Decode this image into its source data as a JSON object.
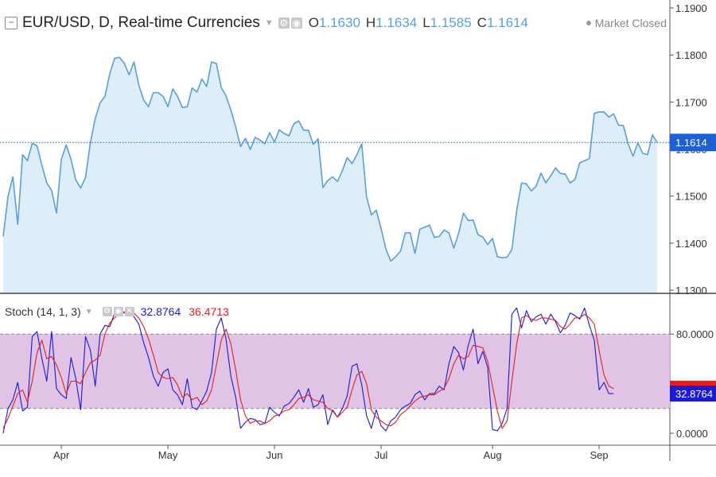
{
  "header": {
    "symbol": "EUR/USD, D, Real-time Currencies",
    "caret_icon": "chevron-down-icon",
    "ohlc": [
      {
        "key": "O",
        "value": "1.1630"
      },
      {
        "key": "H",
        "value": "1.1634"
      },
      {
        "key": "L",
        "value": "1.1585"
      },
      {
        "key": "C",
        "value": "1.1614"
      }
    ],
    "status": "Market Closed"
  },
  "stoch_legend": {
    "name": "Stoch (14, 1, 3)",
    "k_value": "32.8764",
    "d_value": "36.4713"
  },
  "colors": {
    "price_line": "#5a9fd8",
    "price_fill": "#ddeef9",
    "stoch_k": "#1a1ad6",
    "stoch_d": "#e02020",
    "stoch_band": "#e1c4e5",
    "last_price_badge": "#1f5fd4"
  },
  "chart_data": [
    {
      "type": "area",
      "ylim": [
        1.13,
        1.19
      ],
      "y_ticks": [
        "1.1300",
        "1.1400",
        "1.1500",
        "1.1600",
        "1.1700",
        "1.1800",
        "1.1900"
      ],
      "last_price": 1.1614,
      "last_price_label": "1.1614",
      "series": [
        {
          "values": [
            1.1414,
            1.15,
            1.1541,
            1.144,
            1.1588,
            1.1575,
            1.1612,
            1.1607,
            1.1565,
            1.1528,
            1.1512,
            1.1464,
            1.1578,
            1.1609,
            1.1578,
            1.1534,
            1.1517,
            1.154,
            1.1614,
            1.1665,
            1.1698,
            1.1712,
            1.176,
            1.1793,
            1.1795,
            1.1782,
            1.1758,
            1.1785,
            1.1736,
            1.1704,
            1.169,
            1.172,
            1.172,
            1.1712,
            1.169,
            1.1728,
            1.1712,
            1.1688,
            1.169,
            1.173,
            1.1721,
            1.1749,
            1.1733,
            1.1785,
            1.1782,
            1.1731,
            1.1713,
            1.1683,
            1.1647,
            1.1605,
            1.1623,
            1.1599,
            1.1625,
            1.1619,
            1.1611,
            1.1635,
            1.1615,
            1.1641,
            1.1633,
            1.1628,
            1.1654,
            1.166,
            1.164,
            1.164,
            1.161,
            1.1622,
            1.1518,
            1.1533,
            1.1541,
            1.1531,
            1.1554,
            1.1582,
            1.1569,
            1.1588,
            1.1611,
            1.1498,
            1.146,
            1.147,
            1.1431,
            1.1387,
            1.1362,
            1.1371,
            1.1383,
            1.1422,
            1.1422,
            1.1378,
            1.143,
            1.1434,
            1.1438,
            1.1412,
            1.1414,
            1.1428,
            1.1422,
            1.1389,
            1.1421,
            1.1464,
            1.1448,
            1.1449,
            1.1418,
            1.1413,
            1.1397,
            1.141,
            1.1371,
            1.1369,
            1.137,
            1.1386,
            1.147,
            1.1528,
            1.1526,
            1.1511,
            1.1521,
            1.1549,
            1.1528,
            1.1543,
            1.156,
            1.1548,
            1.1547,
            1.1528,
            1.1535,
            1.1571,
            1.1575,
            1.158,
            1.1676,
            1.1679,
            1.1679,
            1.1668,
            1.1675,
            1.1651,
            1.165,
            1.1611,
            1.1585,
            1.1613,
            1.1591,
            1.1588,
            1.163,
            1.1614
          ]
        }
      ]
    },
    {
      "type": "line",
      "x_ticks": [
        {
          "label": "Apr",
          "index": 12
        },
        {
          "label": "May",
          "index": 34
        },
        {
          "label": "Jun",
          "index": 56
        },
        {
          "label": "Jul",
          "index": 78
        },
        {
          "label": "Aug",
          "index": 101
        },
        {
          "label": "Sep",
          "index": 123
        }
      ],
      "ylim": [
        -2,
        104
      ],
      "band": [
        20,
        80
      ],
      "y_ticks": [
        {
          "label": "0.0000",
          "value": 0
        },
        {
          "label": "80.0000",
          "value": 80
        }
      ],
      "series": [
        {
          "name": "%K",
          "values": [
            0,
            20,
            27,
            41,
            18,
            21,
            78,
            82,
            60,
            42,
            82,
            36,
            31,
            28,
            61,
            44,
            19,
            78,
            67,
            38,
            80,
            87,
            86,
            97,
            100,
            97,
            97,
            94,
            88,
            73,
            61,
            46,
            38,
            49,
            52,
            35,
            31,
            23,
            44,
            21,
            19,
            26,
            34,
            49,
            84,
            93,
            76,
            46,
            29,
            4,
            9,
            12,
            11,
            7,
            8,
            21,
            17,
            14,
            22,
            24,
            29,
            35,
            25,
            36,
            21,
            23,
            31,
            7,
            19,
            13,
            20,
            30,
            54,
            56,
            39,
            14,
            4,
            19,
            6,
            2,
            10,
            13,
            19,
            22,
            24,
            31,
            34,
            27,
            32,
            32,
            38,
            35,
            56,
            70,
            65,
            51,
            71,
            84,
            56,
            66,
            53,
            3,
            2,
            8,
            20,
            96,
            101,
            85,
            99,
            90,
            94,
            96,
            88,
            96,
            90,
            81,
            87,
            97,
            95,
            92,
            101,
            87,
            75,
            35,
            41,
            32,
            32
          ]
        },
        {
          "name": "%D",
          "values": [
            4,
            12,
            22,
            32,
            35,
            25,
            42,
            65,
            75,
            60,
            62,
            55,
            45,
            32,
            42,
            42,
            40,
            49,
            57,
            59,
            63,
            80,
            89,
            93,
            97,
            98,
            99,
            97,
            93,
            86,
            76,
            63,
            49,
            45,
            44,
            45,
            39,
            29,
            32,
            27,
            29,
            23,
            26,
            35,
            55,
            75,
            84,
            72,
            51,
            27,
            14,
            8,
            10,
            10,
            8,
            10,
            14,
            15,
            18,
            19,
            23,
            28,
            29,
            31,
            27,
            26,
            25,
            20,
            18,
            13,
            17,
            21,
            35,
            47,
            50,
            40,
            19,
            13,
            10,
            7,
            6,
            9,
            15,
            18,
            22,
            26,
            29,
            30,
            31,
            31,
            34,
            36,
            44,
            56,
            63,
            60,
            62,
            71,
            70,
            69,
            58,
            38,
            18,
            4,
            10,
            42,
            72,
            93,
            95,
            92,
            91,
            93,
            93,
            92,
            91,
            86,
            84,
            88,
            93,
            93,
            96,
            93,
            88,
            67,
            47,
            38,
            36
          ]
        }
      ]
    }
  ]
}
